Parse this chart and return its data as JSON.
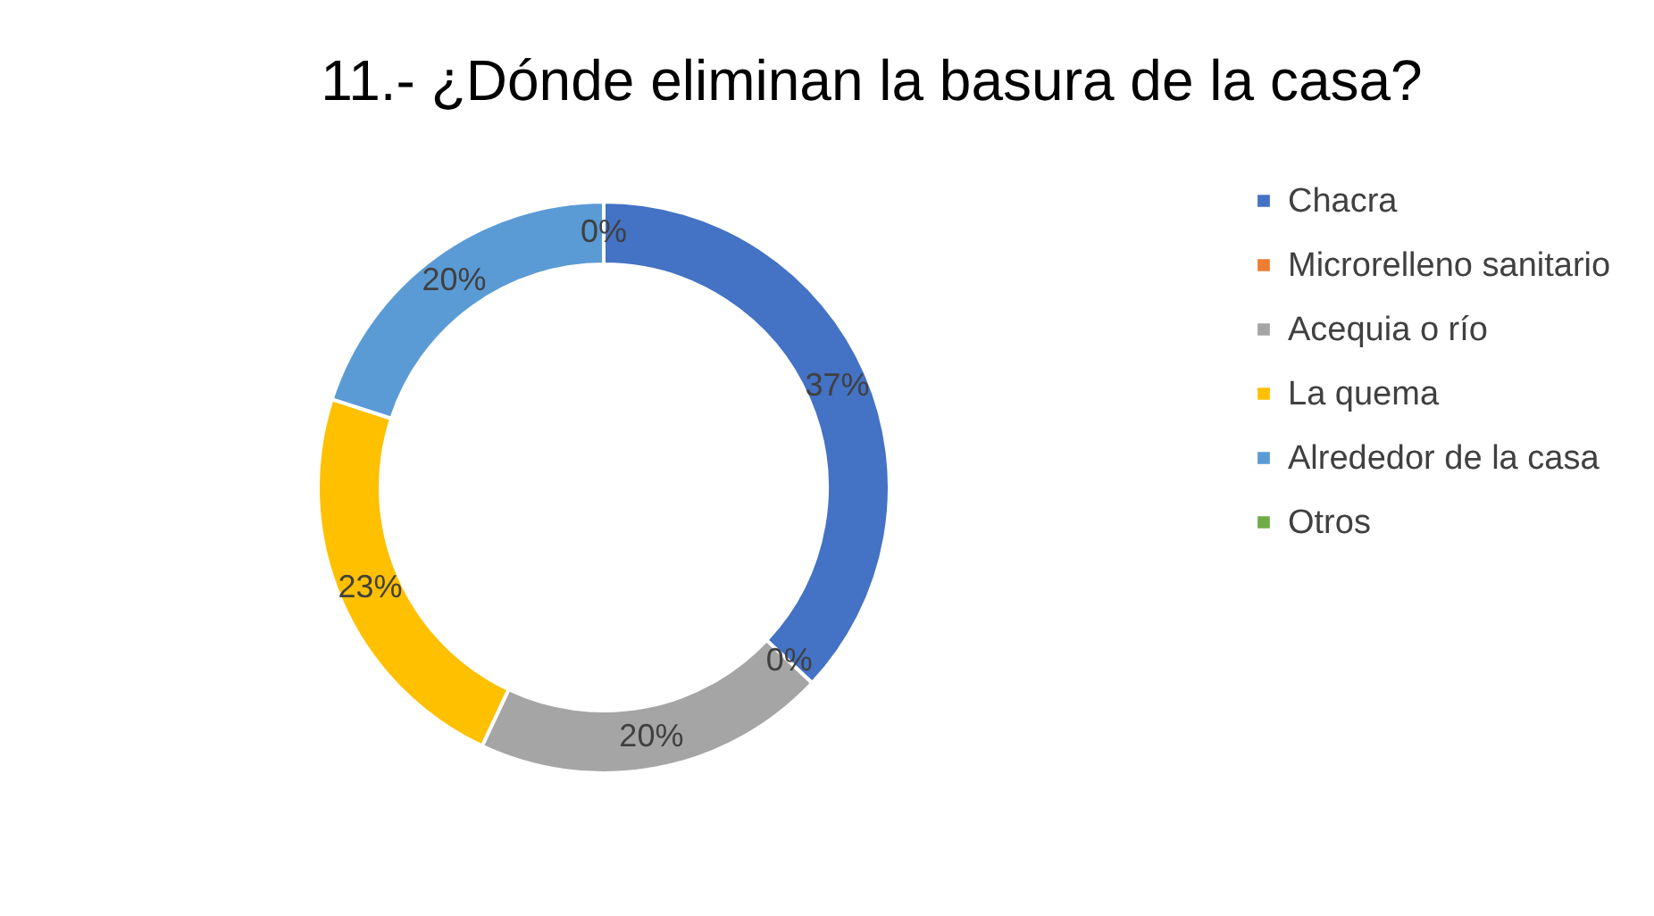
{
  "chart_data": {
    "type": "donut",
    "title": "11.- ¿Dónde eliminan la basura de la casa?",
    "categories": [
      "Chacra",
      "Microrelleno sanitario",
      "Acequia o río",
      "La quema",
      "Alrededor de la casa",
      "Otros"
    ],
    "values": [
      37,
      0,
      20,
      23,
      20,
      0
    ],
    "colors": [
      "#4472c4",
      "#ed7d31",
      "#a5a5a5",
      "#ffc000",
      "#5b9bd5",
      "#70ad47"
    ],
    "value_labels": [
      "37%",
      "0%",
      "20%",
      "23%",
      "20%",
      "0%"
    ],
    "legend": "right"
  }
}
